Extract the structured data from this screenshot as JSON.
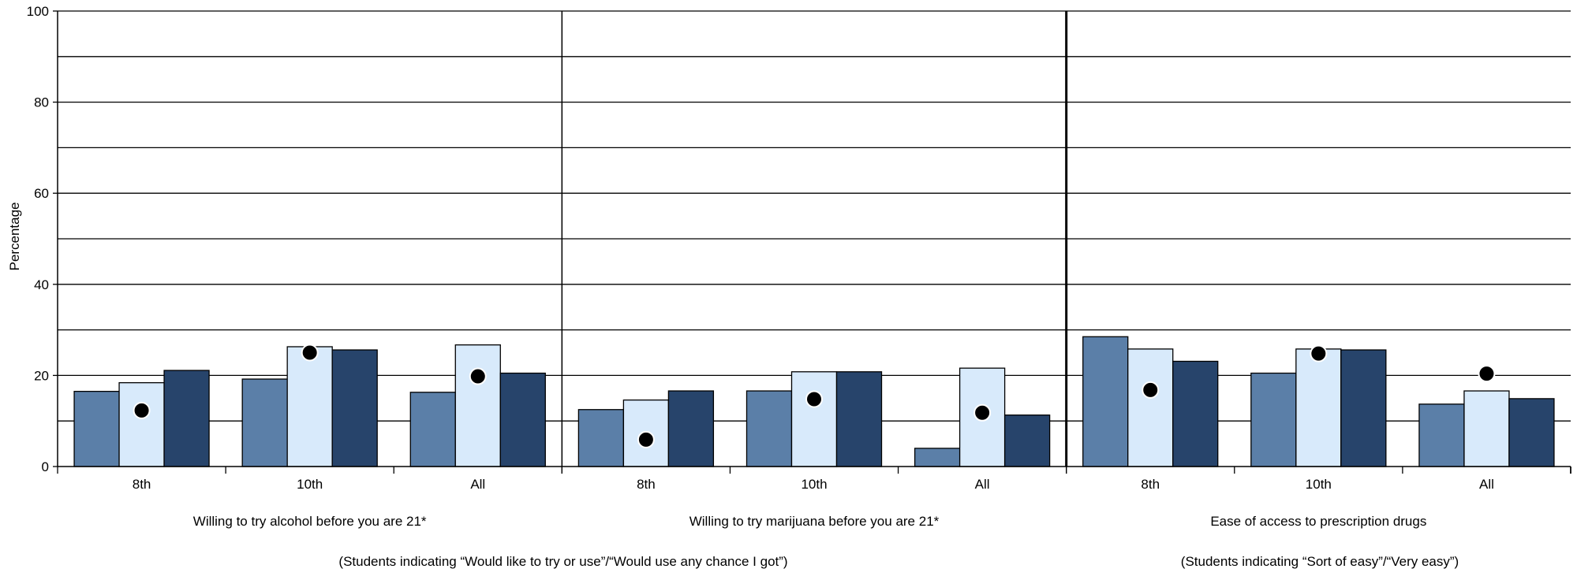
{
  "chart_data": {
    "type": "bar",
    "ylabel": "Percentage",
    "ylim": [
      0,
      100
    ],
    "y_ticks": [
      0,
      20,
      40,
      60,
      80,
      100
    ],
    "gridlines": [
      10,
      20,
      30,
      40,
      50,
      60,
      70,
      80,
      90,
      100
    ],
    "grid": true,
    "colors": {
      "series_1": "#5b7fa8",
      "series_2": "#d8eafb",
      "series_3": "#27446b",
      "marker": "#000000"
    },
    "panels": [
      {
        "title": "Willing to try alcohol before you are 21*",
        "categories": [
          "8th",
          "10th",
          "All"
        ],
        "series": [
          {
            "values": [
              16.5,
              19.2,
              16.3
            ]
          },
          {
            "values": [
              18.4,
              26.3,
              26.7
            ]
          },
          {
            "values": [
              21.1,
              25.6,
              20.5
            ]
          }
        ],
        "markers": [
          12.3,
          25.0,
          19.8
        ]
      },
      {
        "title": "Willing to try marijuana before you are 21*",
        "categories": [
          "8th",
          "10th",
          "All"
        ],
        "series": [
          {
            "values": [
              12.5,
              16.6,
              4.0
            ]
          },
          {
            "values": [
              14.6,
              20.8,
              21.6
            ]
          },
          {
            "values": [
              16.6,
              20.8,
              11.3
            ]
          }
        ],
        "markers": [
          5.9,
          14.8,
          11.8
        ]
      },
      {
        "title": "Ease of access to prescription drugs",
        "categories": [
          "8th",
          "10th",
          "All"
        ],
        "series": [
          {
            "values": [
              28.5,
              20.5,
              13.7
            ]
          },
          {
            "values": [
              25.8,
              25.8,
              16.6
            ]
          },
          {
            "values": [
              23.1,
              25.6,
              14.9
            ]
          }
        ],
        "markers": [
          16.8,
          24.8,
          20.4
        ]
      }
    ],
    "notes": [
      "(Students indicating “Would like to try or use”/“Would use any chance I got”)",
      "(Students indicating “Sort of easy”/“Very easy”)"
    ]
  }
}
